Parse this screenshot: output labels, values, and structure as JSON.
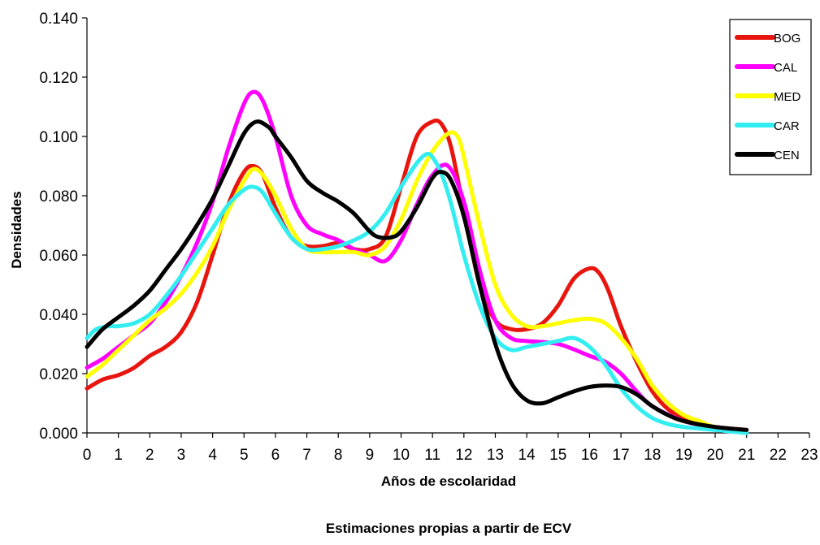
{
  "chart_data": {
    "type": "line",
    "xlabel": "Años de escolaridad",
    "ylabel": "Densidades",
    "note": "Estimaciones propias a partir de ECV",
    "xlim": [
      0,
      23
    ],
    "ylim": [
      0,
      0.14
    ],
    "x_ticks": [
      "0",
      "1",
      "2",
      "3",
      "4",
      "5",
      "6",
      "7",
      "8",
      "9",
      "10",
      "11",
      "12",
      "13",
      "14",
      "15",
      "16",
      "17",
      "18",
      "19",
      "20",
      "21",
      "22",
      "23"
    ],
    "y_ticks": [
      "0.000",
      "0.020",
      "0.040",
      "0.060",
      "0.080",
      "0.100",
      "0.120",
      "0.140"
    ],
    "grid": false,
    "legend_position": "top-right",
    "series": [
      {
        "name": "BOG",
        "color": "#e8150f",
        "points": [
          [
            0,
            0.015
          ],
          [
            0.5,
            0.018
          ],
          [
            1,
            0.0195
          ],
          [
            1.5,
            0.022
          ],
          [
            2,
            0.026
          ],
          [
            2.5,
            0.029
          ],
          [
            3,
            0.034
          ],
          [
            3.5,
            0.044
          ],
          [
            4,
            0.06
          ],
          [
            4.5,
            0.077
          ],
          [
            5,
            0.088
          ],
          [
            5.3,
            0.09
          ],
          [
            5.6,
            0.087
          ],
          [
            6,
            0.076
          ],
          [
            6.5,
            0.066
          ],
          [
            7,
            0.063
          ],
          [
            7.5,
            0.063
          ],
          [
            8,
            0.064
          ],
          [
            8.5,
            0.062
          ],
          [
            9,
            0.062
          ],
          [
            9.5,
            0.066
          ],
          [
            10,
            0.083
          ],
          [
            10.5,
            0.1
          ],
          [
            11,
            0.105
          ],
          [
            11.3,
            0.104
          ],
          [
            11.6,
            0.096
          ],
          [
            12,
            0.075
          ],
          [
            12.5,
            0.05
          ],
          [
            13,
            0.038
          ],
          [
            13.5,
            0.035
          ],
          [
            14,
            0.035
          ],
          [
            14.5,
            0.037
          ],
          [
            15,
            0.043
          ],
          [
            15.5,
            0.052
          ],
          [
            16,
            0.0555
          ],
          [
            16.3,
            0.054
          ],
          [
            16.6,
            0.048
          ],
          [
            17,
            0.036
          ],
          [
            17.5,
            0.024
          ],
          [
            18,
            0.014
          ],
          [
            18.5,
            0.008
          ],
          [
            19,
            0.005
          ],
          [
            19.5,
            0.003
          ],
          [
            20,
            0.002
          ],
          [
            21,
            0.001
          ]
        ]
      },
      {
        "name": "CAL",
        "color": "#ff00ff",
        "points": [
          [
            0,
            0.022
          ],
          [
            0.5,
            0.025
          ],
          [
            1,
            0.029
          ],
          [
            1.5,
            0.033
          ],
          [
            2,
            0.037
          ],
          [
            2.5,
            0.044
          ],
          [
            3,
            0.053
          ],
          [
            3.5,
            0.064
          ],
          [
            4,
            0.078
          ],
          [
            4.5,
            0.096
          ],
          [
            5,
            0.111
          ],
          [
            5.3,
            0.115
          ],
          [
            5.6,
            0.112
          ],
          [
            6,
            0.1
          ],
          [
            6.5,
            0.08
          ],
          [
            7,
            0.07
          ],
          [
            7.5,
            0.067
          ],
          [
            8,
            0.065
          ],
          [
            8.5,
            0.062
          ],
          [
            9,
            0.06
          ],
          [
            9.5,
            0.058
          ],
          [
            10,
            0.065
          ],
          [
            10.5,
            0.077
          ],
          [
            11,
            0.087
          ],
          [
            11.5,
            0.09
          ],
          [
            12,
            0.078
          ],
          [
            12.5,
            0.055
          ],
          [
            13,
            0.038
          ],
          [
            13.5,
            0.032
          ],
          [
            14,
            0.031
          ],
          [
            15,
            0.03
          ],
          [
            16,
            0.026
          ],
          [
            16.5,
            0.024
          ],
          [
            17,
            0.02
          ],
          [
            17.5,
            0.014
          ],
          [
            18,
            0.009
          ],
          [
            19,
            0.004
          ],
          [
            20,
            0.002
          ],
          [
            21,
            0.001
          ]
        ]
      },
      {
        "name": "MED",
        "color": "#ffff00",
        "points": [
          [
            0,
            0.019
          ],
          [
            0.5,
            0.023
          ],
          [
            1,
            0.028
          ],
          [
            1.5,
            0.033
          ],
          [
            2,
            0.038
          ],
          [
            2.5,
            0.042
          ],
          [
            3,
            0.047
          ],
          [
            3.5,
            0.054
          ],
          [
            4,
            0.063
          ],
          [
            4.5,
            0.075
          ],
          [
            5,
            0.085
          ],
          [
            5.3,
            0.089
          ],
          [
            5.6,
            0.087
          ],
          [
            6,
            0.08
          ],
          [
            6.5,
            0.069
          ],
          [
            7,
            0.062
          ],
          [
            7.5,
            0.061
          ],
          [
            8,
            0.061
          ],
          [
            8.5,
            0.061
          ],
          [
            9,
            0.06
          ],
          [
            9.5,
            0.063
          ],
          [
            10,
            0.072
          ],
          [
            10.5,
            0.085
          ],
          [
            11,
            0.095
          ],
          [
            11.5,
            0.101
          ],
          [
            11.8,
            0.1
          ],
          [
            12,
            0.093
          ],
          [
            12.5,
            0.07
          ],
          [
            13,
            0.05
          ],
          [
            13.5,
            0.04
          ],
          [
            14,
            0.036
          ],
          [
            14.5,
            0.036
          ],
          [
            15,
            0.037
          ],
          [
            15.5,
            0.038
          ],
          [
            16,
            0.0385
          ],
          [
            16.5,
            0.037
          ],
          [
            17,
            0.032
          ],
          [
            17.5,
            0.025
          ],
          [
            18,
            0.016
          ],
          [
            18.5,
            0.01
          ],
          [
            19,
            0.006
          ],
          [
            19.5,
            0.004
          ],
          [
            20,
            0.002
          ],
          [
            21,
            0.001
          ]
        ]
      },
      {
        "name": "CAR",
        "color": "#33eef0",
        "points": [
          [
            0,
            0.032
          ],
          [
            0.3,
            0.035
          ],
          [
            0.7,
            0.036
          ],
          [
            1,
            0.036
          ],
          [
            1.5,
            0.037
          ],
          [
            2,
            0.04
          ],
          [
            2.5,
            0.046
          ],
          [
            3,
            0.053
          ],
          [
            3.5,
            0.061
          ],
          [
            4,
            0.069
          ],
          [
            4.5,
            0.077
          ],
          [
            5,
            0.082
          ],
          [
            5.3,
            0.083
          ],
          [
            5.6,
            0.081
          ],
          [
            6,
            0.074
          ],
          [
            6.5,
            0.066
          ],
          [
            7,
            0.062
          ],
          [
            7.5,
            0.062
          ],
          [
            8,
            0.063
          ],
          [
            8.5,
            0.065
          ],
          [
            9,
            0.068
          ],
          [
            9.5,
            0.074
          ],
          [
            10,
            0.083
          ],
          [
            10.5,
            0.091
          ],
          [
            10.8,
            0.094
          ],
          [
            11,
            0.093
          ],
          [
            11.3,
            0.087
          ],
          [
            11.6,
            0.077
          ],
          [
            12,
            0.06
          ],
          [
            12.5,
            0.043
          ],
          [
            13,
            0.032
          ],
          [
            13.5,
            0.028
          ],
          [
            14,
            0.029
          ],
          [
            14.5,
            0.03
          ],
          [
            15,
            0.031
          ],
          [
            15.5,
            0.032
          ],
          [
            16,
            0.029
          ],
          [
            16.5,
            0.023
          ],
          [
            17,
            0.015
          ],
          [
            17.5,
            0.009
          ],
          [
            18,
            0.005
          ],
          [
            18.5,
            0.003
          ],
          [
            19,
            0.002
          ],
          [
            20,
            0.001
          ],
          [
            21,
            0.0
          ]
        ]
      },
      {
        "name": "CEN",
        "color": "#000000",
        "points": [
          [
            0,
            0.029
          ],
          [
            0.5,
            0.035
          ],
          [
            1,
            0.039
          ],
          [
            1.5,
            0.043
          ],
          [
            2,
            0.048
          ],
          [
            2.5,
            0.055
          ],
          [
            3,
            0.062
          ],
          [
            3.5,
            0.07
          ],
          [
            4,
            0.079
          ],
          [
            4.5,
            0.09
          ],
          [
            5,
            0.101
          ],
          [
            5.4,
            0.105
          ],
          [
            5.8,
            0.103
          ],
          [
            6,
            0.1
          ],
          [
            6.5,
            0.093
          ],
          [
            7,
            0.085
          ],
          [
            7.5,
            0.081
          ],
          [
            8,
            0.078
          ],
          [
            8.5,
            0.074
          ],
          [
            9,
            0.068
          ],
          [
            9.3,
            0.066
          ],
          [
            9.7,
            0.066
          ],
          [
            10,
            0.068
          ],
          [
            10.5,
            0.076
          ],
          [
            11,
            0.086
          ],
          [
            11.3,
            0.088
          ],
          [
            11.6,
            0.085
          ],
          [
            12,
            0.073
          ],
          [
            12.5,
            0.05
          ],
          [
            13,
            0.03
          ],
          [
            13.5,
            0.017
          ],
          [
            14,
            0.011
          ],
          [
            14.5,
            0.01
          ],
          [
            15,
            0.012
          ],
          [
            15.5,
            0.014
          ],
          [
            16,
            0.0155
          ],
          [
            16.5,
            0.016
          ],
          [
            17,
            0.0155
          ],
          [
            17.5,
            0.013
          ],
          [
            18,
            0.009
          ],
          [
            18.5,
            0.006
          ],
          [
            19,
            0.004
          ],
          [
            20,
            0.002
          ],
          [
            21,
            0.001
          ]
        ]
      }
    ]
  }
}
